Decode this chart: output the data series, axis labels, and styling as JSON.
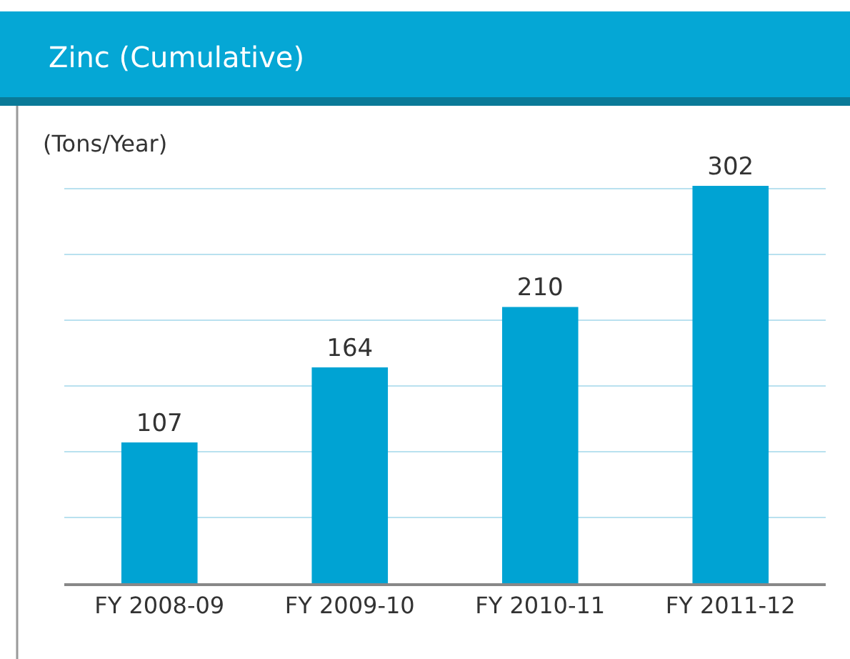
{
  "chart_data": {
    "type": "bar",
    "title": "Zinc (Cumulative)",
    "ylabel": "(Tons/Year)",
    "categories": [
      "FY 2008-09",
      "FY 2009-10",
      "FY 2010-11",
      "FY 2011-12"
    ],
    "values": [
      107,
      164,
      210,
      302
    ],
    "color": "#00a3d3",
    "ylim": [
      0,
      302
    ],
    "yticks": [
      {
        "value": 0,
        "label": null
      },
      {
        "value": 50,
        "label": null
      },
      {
        "value": 100,
        "label": null
      },
      {
        "value": 150,
        "label": null
      },
      {
        "value": 200,
        "label": null
      },
      {
        "value": 250,
        "label": null
      },
      {
        "value": 300,
        "label": null
      }
    ],
    "grid": "y",
    "tick_labels": "x",
    "data_labels": true
  }
}
